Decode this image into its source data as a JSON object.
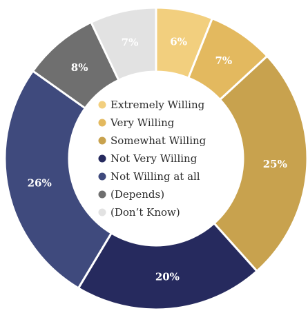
{
  "chart_data": {
    "type": "pie",
    "donut": true,
    "categories": [
      "Extremely Willing",
      "Very Willing",
      "Somewhat Willing",
      "Not Very Willing",
      "Not Willing at all",
      "(Depends)",
      "(Don’t Know)"
    ],
    "values": [
      6,
      7,
      25,
      20,
      26,
      8,
      7
    ],
    "labels": [
      "6%",
      "7%",
      "25%",
      "20%",
      "26%",
      "8%",
      "7%"
    ],
    "colors": [
      "#f2cf7e",
      "#e3b95f",
      "#c8a24e",
      "#262a5e",
      "#3f4a7d",
      "#6f6f6f",
      "#e2e2e2"
    ],
    "legend_position": "center"
  }
}
